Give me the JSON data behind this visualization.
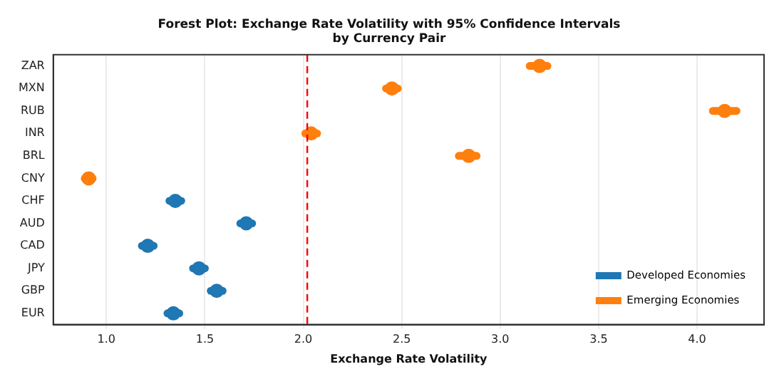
{
  "chart_data": {
    "type": "scatter",
    "orientation": "horizontal",
    "title": "Forest Plot: Exchange Rate Volatility with 95% Confidence Intervals\nby Currency Pair",
    "xlabel": "Exchange Rate Volatility",
    "categories": [
      "ZAR",
      "MXN",
      "RUB",
      "INR",
      "BRL",
      "CNY",
      "CHF",
      "AUD",
      "CAD",
      "JPY",
      "GBP",
      "EUR"
    ],
    "series": [
      {
        "name": "Developed Economies",
        "color": "#1f77b4",
        "values": [
          null,
          null,
          null,
          null,
          null,
          null,
          1.35,
          1.71,
          1.21,
          1.47,
          1.56,
          1.34
        ],
        "errors": [
          null,
          null,
          null,
          null,
          null,
          null,
          [
            1.32,
            1.38
          ],
          [
            1.68,
            1.74
          ],
          [
            1.18,
            1.24
          ],
          [
            1.44,
            1.5
          ],
          [
            1.53,
            1.59
          ],
          [
            1.31,
            1.37
          ]
        ]
      },
      {
        "name": "Emerging Economies",
        "color": "#ff7f0e",
        "values": [
          3.2,
          2.45,
          4.14,
          2.04,
          2.84,
          0.91,
          null,
          null,
          null,
          null,
          null,
          null
        ],
        "errors": [
          [
            3.15,
            3.24
          ],
          [
            2.42,
            2.48
          ],
          [
            4.08,
            4.2
          ],
          [
            2.01,
            2.07
          ],
          [
            2.79,
            2.88
          ],
          [
            0.89,
            0.93
          ],
          null,
          null,
          null,
          null,
          null,
          null
        ]
      }
    ],
    "xlim": [
      0.73,
      4.34
    ],
    "xticks": [
      {
        "value": 1,
        "label": "1.0"
      },
      {
        "value": 1.5,
        "label": "1.5"
      },
      {
        "value": 2,
        "label": "2.0"
      },
      {
        "value": 2.5,
        "label": "2.5"
      },
      {
        "value": 3,
        "label": "3.0"
      },
      {
        "value": 3.5,
        "label": "3.5"
      },
      {
        "value": 4,
        "label": "4.0"
      }
    ],
    "ref_lines": [
      {
        "axis": "x",
        "value": 2.02,
        "color": "#ff0000",
        "line_style": "dashed"
      }
    ],
    "grid": "x",
    "legend": "bottom right",
    "marker": "circle"
  }
}
